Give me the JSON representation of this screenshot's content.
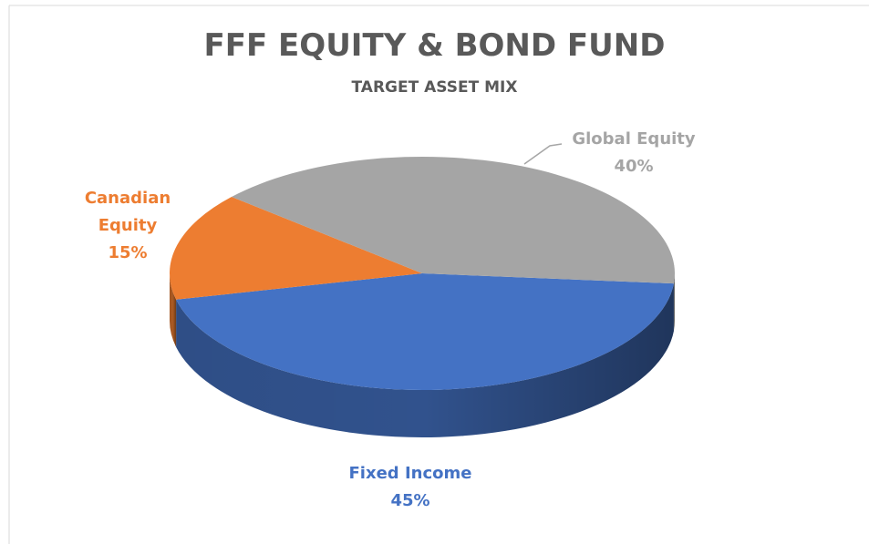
{
  "chart_data": {
    "type": "pie",
    "title": "FFF EQUITY & BOND FUND",
    "subtitle": "TARGET ASSET MIX",
    "categories": [
      "Fixed Income",
      "Canadian Equity",
      "Global Equity"
    ],
    "values": [
      45,
      15,
      40
    ],
    "value_labels": [
      "45%",
      "15%",
      "40%"
    ],
    "colors": [
      "#4472c4",
      "#ed7d31",
      "#a5a5a5"
    ]
  }
}
